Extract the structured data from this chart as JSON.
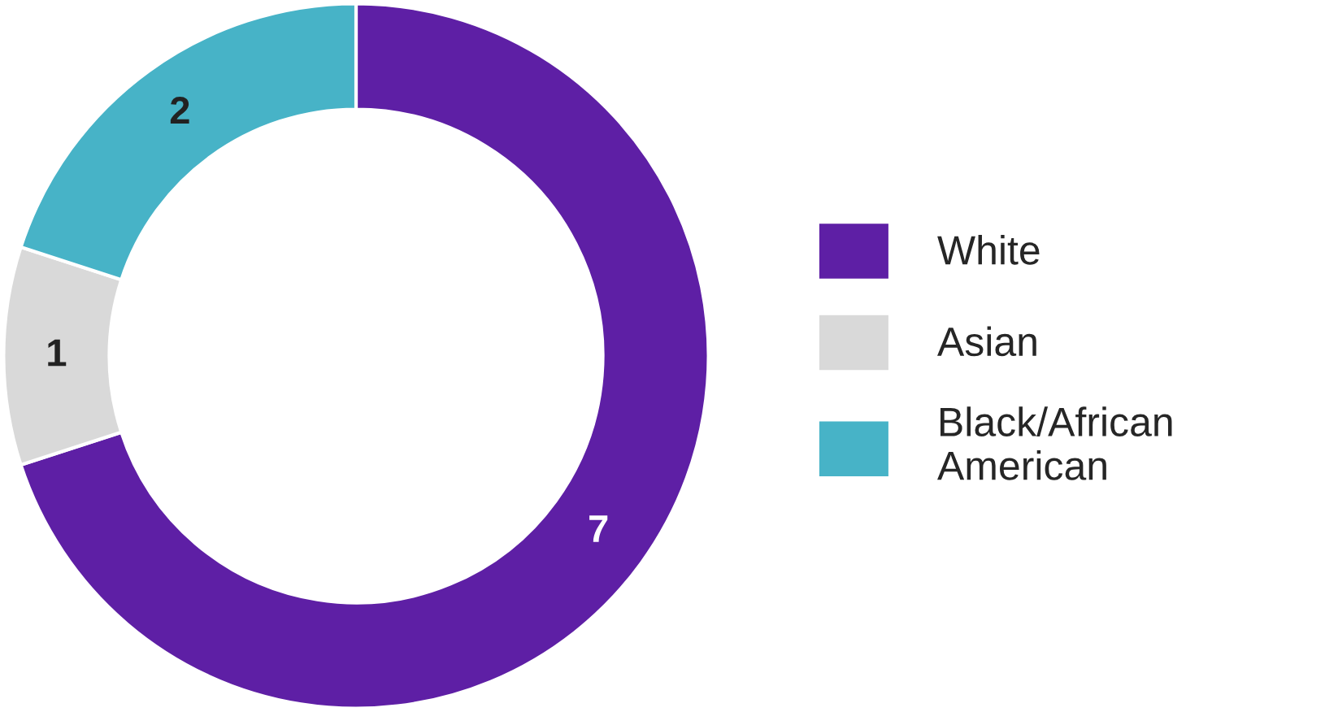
{
  "chart_data": {
    "type": "donut",
    "categories": [
      "White",
      "Asian",
      "Black/African\nAmerican"
    ],
    "values": [
      7,
      1,
      2
    ],
    "colors": [
      "#5e1fa5",
      "#d9d9d9",
      "#47b3c7"
    ],
    "data_labels": true,
    "legend": "right"
  }
}
